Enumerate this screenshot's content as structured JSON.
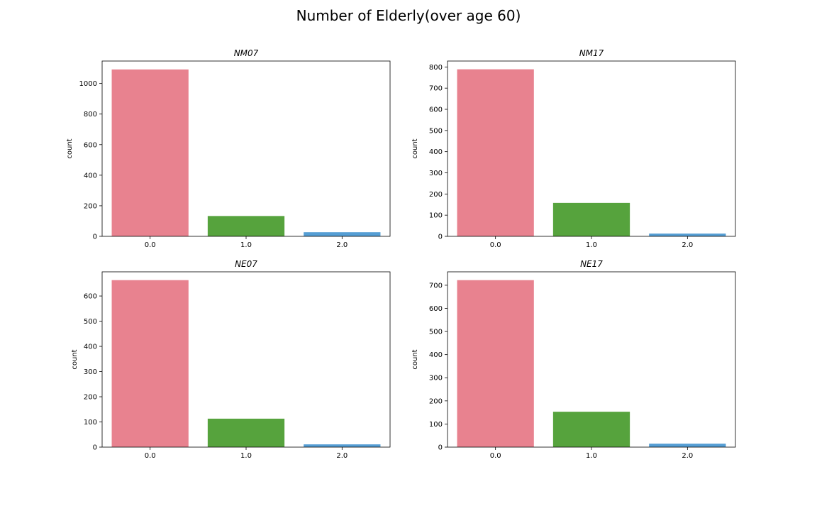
{
  "figure": {
    "suptitle": "Number of Elderly(over age 60)"
  },
  "colors": [
    "#e8828f",
    "#56a33d",
    "#559ed4"
  ],
  "chart_data": [
    {
      "type": "bar",
      "title": "NM07",
      "xlabel": "",
      "ylabel": "count",
      "categories": [
        "0.0",
        "1.0",
        "2.0"
      ],
      "values": [
        1092,
        133,
        27
      ],
      "ylim": [
        0,
        1147
      ],
      "yticks": [
        0,
        200,
        400,
        600,
        800,
        1000
      ]
    },
    {
      "type": "bar",
      "title": "NM17",
      "xlabel": "",
      "ylabel": "count",
      "categories": [
        "0.0",
        "1.0",
        "2.0"
      ],
      "values": [
        789,
        158,
        13
      ],
      "ylim": [
        0,
        828
      ],
      "yticks": [
        0,
        100,
        200,
        300,
        400,
        500,
        600,
        700,
        800
      ]
    },
    {
      "type": "bar",
      "title": "NE07",
      "xlabel": "",
      "ylabel": "count",
      "categories": [
        "0.0",
        "1.0",
        "2.0"
      ],
      "values": [
        663,
        113,
        11
      ],
      "ylim": [
        0,
        696
      ],
      "yticks": [
        0,
        100,
        200,
        300,
        400,
        500,
        600
      ]
    },
    {
      "type": "bar",
      "title": "NE17",
      "xlabel": "",
      "ylabel": "count",
      "categories": [
        "0.0",
        "1.0",
        "2.0"
      ],
      "values": [
        722,
        153,
        15
      ],
      "ylim": [
        0,
        758
      ],
      "yticks": [
        0,
        100,
        200,
        300,
        400,
        500,
        600,
        700
      ]
    }
  ]
}
